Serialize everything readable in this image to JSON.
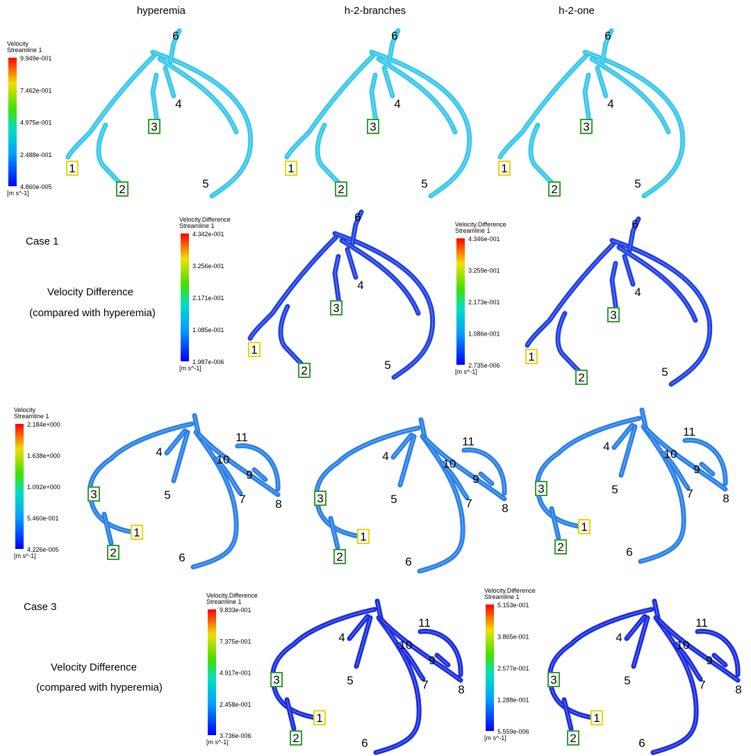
{
  "columns": [
    "hyperemia",
    "h-2-branches",
    "h-2-one"
  ],
  "row_labels": [
    {
      "case": "Case 1",
      "title": "Velocity  Difference",
      "note": "(compared with hyperemia)"
    },
    {
      "case": "Case 3",
      "title": "Velocity  Difference",
      "note": "(compared with hyperemia)"
    }
  ],
  "colorbars": [
    {
      "title": "Velocity",
      "subtitle": "Streamline 1",
      "ticks": [
        "9.949e-001",
        "7.462e-001",
        "4.975e-001",
        "2.488e-001",
        "4.860e-005"
      ],
      "unit": "[m s^-1]"
    },
    {
      "title": "Velocity.Difference",
      "subtitle": "Streamline 1",
      "ticks": [
        "4.342e-001",
        "3.256e-001",
        "2.171e-001",
        "1.085e-001",
        "1.987e-006"
      ],
      "unit": "[m s^-1]"
    },
    {
      "title": "Velocity.Difference",
      "subtitle": "Streamline 1",
      "ticks": [
        "4.346e-001",
        "3.259e-001",
        "2.173e-001",
        "1.086e-001",
        "2.735e-006"
      ],
      "unit": "[m s^-1]"
    },
    {
      "title": "Velocity",
      "subtitle": "Streamline 1",
      "ticks": [
        "2.184e+000",
        "1.638e+000",
        "1.092e+000",
        "5.460e-001",
        "4.226e-005"
      ],
      "unit": "[m s^-1]"
    },
    {
      "title": "Velocity.Difference",
      "subtitle": "Streamline 1",
      "ticks": [
        "9.833e-001",
        "7.375e-001",
        "4.917e-001",
        "2.458e-001",
        "3.736e-006"
      ],
      "unit": "[m s^-1]"
    },
    {
      "title": "Velocity.Difference",
      "subtitle": "Streamline 1",
      "ticks": [
        "5.153e-001",
        "3.865e-001",
        "2.577e-001",
        "1.288e-001",
        "5.559e-006"
      ],
      "unit": "[m s^-1]"
    }
  ],
  "panels": [
    {
      "labels": [
        "6",
        "4",
        "3",
        "1",
        "2",
        "5"
      ]
    },
    {
      "labels": [
        "6",
        "4",
        "3",
        "1",
        "2",
        "5"
      ]
    },
    {
      "labels": [
        "6",
        "4",
        "3",
        "1",
        "2",
        "5"
      ]
    },
    {
      "labels": [
        "6",
        "4",
        "3",
        "1",
        "2",
        "5"
      ]
    },
    {
      "labels": [
        "6",
        "4",
        "3",
        "1",
        "2",
        "5"
      ]
    },
    {
      "labels": [
        "11",
        "10",
        "9",
        "8",
        "7",
        "6",
        "5",
        "4",
        "3",
        "1",
        "2"
      ]
    },
    {
      "labels": [
        "11",
        "10",
        "9",
        "8",
        "7",
        "6",
        "5",
        "4",
        "3",
        "1",
        "2"
      ]
    },
    {
      "labels": [
        "11",
        "10",
        "9",
        "8",
        "7",
        "6",
        "5",
        "4",
        "3",
        "1",
        "2"
      ]
    },
    {
      "labels": [
        "11",
        "10",
        "9",
        "8",
        "7",
        "6",
        "5",
        "4",
        "3",
        "1",
        "2"
      ]
    },
    {
      "labels": [
        "11",
        "10",
        "9",
        "8",
        "7",
        "6",
        "5",
        "4",
        "3",
        "1",
        "2"
      ]
    }
  ]
}
